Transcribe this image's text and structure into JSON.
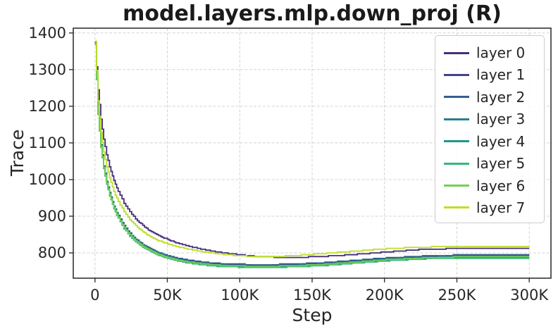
{
  "chart_data": {
    "type": "line",
    "title": "model.layers.mlp.down_proj (R)",
    "xlabel": "Step",
    "ylabel": "Trace",
    "x_tick_values": [
      0,
      50000,
      100000,
      150000,
      200000,
      250000,
      300000
    ],
    "x_tick_labels": [
      "0",
      "50K",
      "100K",
      "150K",
      "200K",
      "250K",
      "300K"
    ],
    "y_tick_values": [
      800,
      900,
      1000,
      1100,
      1200,
      1300,
      1400
    ],
    "y_tick_labels": [
      "800",
      "900",
      "1000",
      "1100",
      "1200",
      "1300",
      "1400"
    ],
    "xlim": [
      -15000,
      315000
    ],
    "ylim": [
      731,
      1413
    ],
    "grid": true,
    "grid_color": "#d4d4d4",
    "spine_color": "#333333",
    "tick_text_color": "#262626",
    "legend_position": "upper right",
    "quantize": 2.5,
    "steps_k": [
      0,
      2,
      4,
      6,
      8,
      10,
      13,
      16,
      20,
      24,
      28,
      33,
      38,
      44,
      50,
      57,
      65,
      73,
      82,
      91,
      100,
      110,
      120,
      130,
      140,
      150,
      160,
      170,
      180,
      190,
      200,
      210,
      220,
      230,
      240,
      250,
      260,
      270,
      280,
      290,
      300
    ],
    "series": [
      {
        "name": "layer 0",
        "color": "#472d7b",
        "values": [
          1370,
          1245,
          1165,
          1110,
          1068,
          1035,
          997,
          967,
          936,
          912,
          893,
          874,
          860,
          847,
          837,
          827,
          818,
          811,
          804,
          799,
          795,
          791,
          789,
          788,
          788,
          789,
          791,
          793,
          796,
          799,
          802,
          805,
          808,
          810,
          811,
          812,
          812,
          812,
          812,
          812,
          812
        ]
      },
      {
        "name": "layer 1",
        "color": "#414487",
        "values": [
          1374,
          1184,
          1094,
          1036,
          994,
          962,
          926,
          900,
          872,
          852,
          836,
          821,
          810,
          799,
          791,
          784,
          778,
          774,
          770,
          768,
          767,
          766,
          766,
          767,
          768,
          770,
          772,
          775,
          778,
          781,
          784,
          786,
          788,
          790,
          791,
          792,
          792,
          792,
          792,
          792,
          792
        ]
      },
      {
        "name": "layer 2",
        "color": "#355f8d",
        "values": [
          1376,
          1186,
          1096,
          1038,
          996,
          964,
          928,
          902,
          874,
          854,
          838,
          823,
          812,
          801,
          793,
          786,
          780,
          776,
          772,
          770,
          769,
          768,
          768,
          769,
          770,
          772,
          774,
          777,
          780,
          783,
          786,
          788,
          790,
          792,
          793,
          794,
          794,
          794,
          794,
          794,
          794
        ]
      },
      {
        "name": "layer 3",
        "color": "#27808e",
        "values": [
          1372,
          1182,
          1092,
          1034,
          992,
          960,
          924,
          898,
          870,
          850,
          834,
          819,
          808,
          797,
          789,
          782,
          776,
          772,
          768,
          766,
          765,
          764,
          764,
          765,
          766,
          768,
          770,
          773,
          776,
          779,
          782,
          784,
          786,
          788,
          789,
          790,
          790,
          790,
          790,
          790,
          790
        ]
      },
      {
        "name": "layer 4",
        "color": "#1f998a",
        "values": [
          1370,
          1180,
          1090,
          1032,
          990,
          958,
          922,
          896,
          868,
          848,
          832,
          817,
          806,
          795,
          787,
          780,
          774,
          770,
          766,
          764,
          763,
          762,
          762,
          763,
          764,
          766,
          768,
          771,
          774,
          777,
          780,
          782,
          784,
          786,
          787,
          788,
          788,
          788,
          788,
          788,
          788
        ]
      },
      {
        "name": "layer 5",
        "color": "#35b779",
        "values": [
          1368,
          1178,
          1088,
          1030,
          988,
          956,
          920,
          894,
          866,
          846,
          830,
          815,
          804,
          793,
          785,
          778,
          772,
          768,
          764,
          762,
          761,
          760,
          760,
          761,
          762,
          764,
          766,
          769,
          772,
          775,
          778,
          780,
          782,
          784,
          785,
          786,
          786,
          786,
          786,
          786,
          786
        ]
      },
      {
        "name": "layer 6",
        "color": "#74d055",
        "values": [
          1371,
          1181,
          1091,
          1033,
          991,
          959,
          923,
          897,
          869,
          849,
          833,
          818,
          807,
          796,
          788,
          781,
          775,
          771,
          767,
          765,
          764,
          763,
          763,
          764,
          765,
          767,
          769,
          772,
          775,
          778,
          781,
          783,
          785,
          787,
          788,
          789,
          789,
          789,
          789,
          789,
          789
        ]
      },
      {
        "name": "layer 7",
        "color": "#bddf26",
        "values": [
          1378,
          1215,
          1130,
          1075,
          1035,
          1004,
          968,
          940,
          912,
          891,
          874,
          857,
          845,
          833,
          825,
          817,
          810,
          804,
          799,
          795,
          792,
          790,
          790,
          791,
          793,
          796,
          799,
          802,
          805,
          808,
          811,
          813,
          815,
          816,
          817,
          818,
          818,
          818,
          818,
          818,
          818
        ]
      }
    ]
  }
}
